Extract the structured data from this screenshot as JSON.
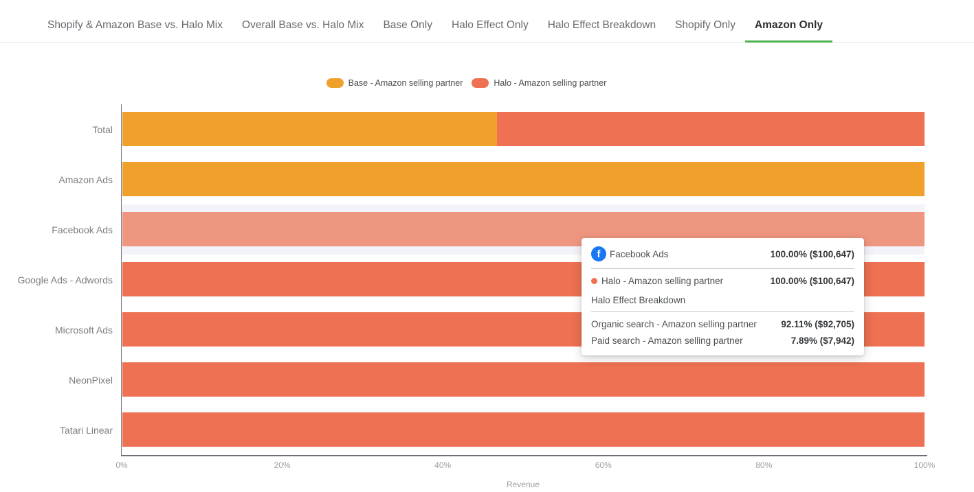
{
  "colors": {
    "base_series": "#F0A12C",
    "halo_series": "#ED7152",
    "row_highlight_band": "#F3F4F9",
    "tab_active_underline": "#4CAF50",
    "facebook_blue": "#1877F2",
    "axis_line": "#6E7079"
  },
  "tabs": {
    "items": [
      {
        "label": "Shopify & Amazon Base vs. Halo Mix",
        "active": false
      },
      {
        "label": "Overall Base vs. Halo Mix",
        "active": false
      },
      {
        "label": "Base Only",
        "active": false
      },
      {
        "label": "Halo Effect Only",
        "active": false
      },
      {
        "label": "Halo Effect Breakdown",
        "active": false
      },
      {
        "label": "Shopify Only",
        "active": false
      },
      {
        "label": "Amazon Only",
        "active": true
      }
    ]
  },
  "legend": {
    "items": [
      {
        "label": "Base - Amazon selling partner",
        "color": "#F0A12C"
      },
      {
        "label": "Halo - Amazon selling partner",
        "color": "#ED7152"
      }
    ]
  },
  "chart_data": {
    "type": "bar",
    "orientation": "horizontal",
    "stacked": true,
    "unit": "percent",
    "title": "",
    "xlabel": "Revenue",
    "ylabel": "",
    "xlim": [
      0,
      100
    ],
    "x_ticks": [
      "0%",
      "20%",
      "40%",
      "60%",
      "80%",
      "100%"
    ],
    "grid": false,
    "legend_position": "top",
    "categories": [
      "Total",
      "Amazon Ads",
      "Facebook Ads",
      "Google Ads - Adwords",
      "Microsoft Ads",
      "NeonPixel",
      "Tatari Linear"
    ],
    "series": [
      {
        "name": "Base - Amazon selling partner",
        "color": "#F0A12C",
        "values": [
          46.7,
          100,
          0,
          0,
          0,
          0,
          0
        ]
      },
      {
        "name": "Halo - Amazon selling partner",
        "color": "#ED7152",
        "values": [
          53.3,
          0,
          100,
          100,
          100,
          100,
          100
        ]
      }
    ],
    "highlighted_category": "Facebook Ads"
  },
  "tooltip": {
    "title": "Facebook Ads",
    "title_icon": "facebook-icon",
    "title_value": "100.00% ($100,647)",
    "series_row": {
      "label": "Halo - Amazon selling partner",
      "dot_color": "#ED7152",
      "value": "100.00% ($100,647)"
    },
    "section_title": "Halo Effect Breakdown",
    "breakdown": [
      {
        "label": "Organic search - Amazon selling partner",
        "value": "92.11% ($92,705)"
      },
      {
        "label": "Paid search - Amazon selling partner",
        "value": "7.89% ($7,942)"
      }
    ],
    "facebook_icon_glyph": "f"
  }
}
